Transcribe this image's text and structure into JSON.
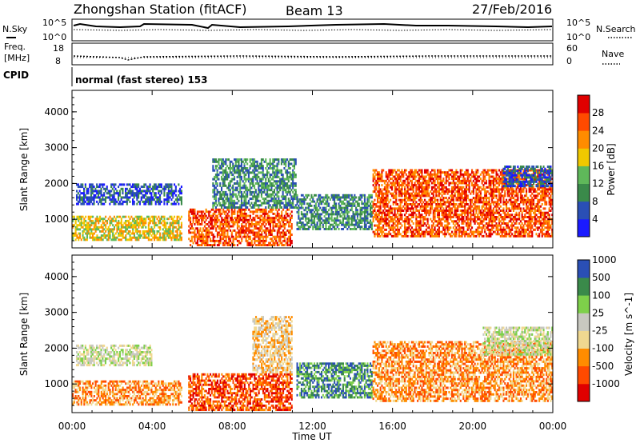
{
  "header": {
    "station": "Zhongshan Station (fitACF)",
    "beam": "Beam 13",
    "date": "27/Feb/2016"
  },
  "summary": {
    "nsky_label": "N.Sky",
    "nsearch_label": "N.Search",
    "noise_top": "10^5",
    "noise_bottom": "10^0",
    "freq_label_1": "Freq.",
    "freq_label_2": "[MHz]",
    "freq_top": "18",
    "freq_bottom": "8",
    "nave_label": "Nave",
    "nave_top": "60",
    "nave_bottom": "0",
    "cpid_label": "CPID",
    "cpid_text": "normal (fast stereo) 153"
  },
  "colors": {
    "power_scale": [
      "#1a1aff",
      "#2a4fb5",
      "#3a8a4a",
      "#5fb85a",
      "#f0c800",
      "#ff8c00",
      "#ff4a00",
      "#e00000"
    ],
    "velocity_scale": [
      "#e00000",
      "#ff4a00",
      "#ff8c00",
      "#f0d890",
      "#c8c8c0",
      "#7ed04a",
      "#3a8a4a",
      "#2a4fb5"
    ]
  },
  "chart_data": [
    {
      "type": "heatmap",
      "quantity": "Power",
      "ylabel": "Slant Range [km]",
      "xlabel": "Time UT",
      "xlim": [
        "00:00",
        "24:00"
      ],
      "ylim": [
        200,
        4600
      ],
      "x_ticks": [
        "00:00",
        "04:00",
        "08:00",
        "12:00",
        "16:00",
        "20:00",
        "00:00"
      ],
      "y_ticks": [
        "1000",
        "2000",
        "3000",
        "4000"
      ],
      "colorbar_label": "Power [dB]",
      "colorbar_ticks": [
        "4",
        "8",
        "12",
        "16",
        "20",
        "24",
        "28"
      ],
      "echo_regions": [
        {
          "t_start": 0.2,
          "t_end": 5.5,
          "r_low": 1400,
          "r_high": 2000,
          "level": 1
        },
        {
          "t_start": 0.0,
          "t_end": 5.5,
          "r_low": 400,
          "r_high": 1100,
          "level": 4
        },
        {
          "t_start": 5.8,
          "t_end": 11.0,
          "r_low": 250,
          "r_high": 1300,
          "level": 6
        },
        {
          "t_start": 7.0,
          "t_end": 11.2,
          "r_low": 1300,
          "r_high": 2700,
          "level": 2
        },
        {
          "t_start": 11.2,
          "t_end": 15.0,
          "r_low": 700,
          "r_high": 1700,
          "level": 2
        },
        {
          "t_start": 15.0,
          "t_end": 24.0,
          "r_low": 500,
          "r_high": 2400,
          "level": 6
        },
        {
          "t_start": 21.5,
          "t_end": 24.0,
          "r_low": 1900,
          "r_high": 2500,
          "level": 1
        }
      ]
    },
    {
      "type": "heatmap",
      "quantity": "Velocity",
      "ylabel": "Slant Range [km]",
      "xlabel": "Time UT",
      "xlim": [
        "00:00",
        "24:00"
      ],
      "ylim": [
        200,
        4600
      ],
      "x_ticks": [
        "00:00",
        "04:00",
        "08:00",
        "12:00",
        "16:00",
        "20:00",
        "00:00"
      ],
      "y_ticks": [
        "1000",
        "2000",
        "3000",
        "4000"
      ],
      "colorbar_label": "Velocity [m s^-1]",
      "colorbar_ticks": [
        "-1000",
        "-500",
        "-100",
        "-25",
        "25",
        "100",
        "500",
        "1000"
      ],
      "echo_regions": [
        {
          "t_start": 0.2,
          "t_end": 4.0,
          "r_low": 1500,
          "r_high": 2100,
          "level": 4
        },
        {
          "t_start": 0.0,
          "t_end": 5.5,
          "r_low": 400,
          "r_high": 1100,
          "level": 2
        },
        {
          "t_start": 5.8,
          "t_end": 11.0,
          "r_low": 250,
          "r_high": 1300,
          "level": 1
        },
        {
          "t_start": 9.0,
          "t_end": 11.0,
          "r_low": 1300,
          "r_high": 2900,
          "level": 3
        },
        {
          "t_start": 11.2,
          "t_end": 15.0,
          "r_low": 600,
          "r_high": 1600,
          "level": 6
        },
        {
          "t_start": 15.0,
          "t_end": 24.0,
          "r_low": 500,
          "r_high": 2200,
          "level": 2
        },
        {
          "t_start": 20.5,
          "t_end": 24.0,
          "r_low": 1800,
          "r_high": 2600,
          "level": 4
        }
      ]
    }
  ]
}
